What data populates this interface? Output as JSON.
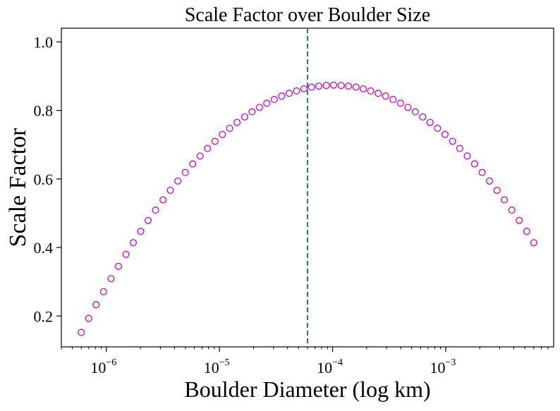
{
  "chart_data": {
    "type": "scatter",
    "title": "Scale Factor over Boulder Size",
    "xlabel": "Boulder Diameter (log km)",
    "ylabel": "Scale Factor",
    "xscale": "log",
    "xlim": [
      4e-07,
      0.009
    ],
    "ylim": [
      0.11,
      1.04
    ],
    "x_ticks": [
      {
        "value": 1e-06,
        "base": "10",
        "exp": "−6"
      },
      {
        "value": 1e-05,
        "base": "10",
        "exp": "−5"
      },
      {
        "value": 0.0001,
        "base": "10",
        "exp": "−4"
      },
      {
        "value": 0.001,
        "base": "10",
        "exp": "−3"
      }
    ],
    "y_ticks": [
      {
        "value": 0.2,
        "label": "0.2"
      },
      {
        "value": 0.4,
        "label": "0.4"
      },
      {
        "value": 0.6,
        "label": "0.6"
      },
      {
        "value": 0.8,
        "label": "0.8"
      },
      {
        "value": 1.0,
        "label": "1.0"
      }
    ],
    "marker": {
      "shape": "open-circle",
      "color": "#cc00cc"
    },
    "vline": {
      "x": 6e-05,
      "color": "#1f77b4",
      "style": "dashed"
    },
    "grid": false,
    "series": [
      {
        "x": [
          6e-07,
          6.98e-07,
          8.12e-07,
          9.44e-07,
          1.1e-06,
          1.28e-06,
          1.49e-06,
          1.73e-06,
          2.01e-06,
          2.34e-06,
          2.72e-06,
          3.17e-06,
          3.68e-06,
          4.28e-06,
          4.98e-06,
          5.8e-06,
          6.74e-06,
          7.84e-06,
          9.12e-06,
          1.06e-05,
          1.23e-05,
          1.43e-05,
          1.67e-05,
          1.94e-05,
          2.26e-05,
          2.62e-05,
          3.05e-05,
          3.55e-05,
          4.13e-05,
          4.8e-05,
          5.59e-05,
          6.5e-05,
          7.55e-05,
          8.79e-05,
          0.000102,
          0.000119,
          0.000138,
          0.000161,
          0.000187,
          0.000217,
          0.000253,
          0.000294,
          0.000342,
          0.000398,
          0.000463,
          0.000538,
          0.000626,
          0.000728,
          0.000847,
          0.000985,
          0.00115,
          0.00133,
          0.00155,
          0.0018,
          0.0021,
          0.00244,
          0.00284,
          0.0033,
          0.00384,
          0.00447,
          0.0052,
          0.006
        ],
        "y": [
          0.152,
          0.193,
          0.233,
          0.271,
          0.309,
          0.345,
          0.38,
          0.414,
          0.447,
          0.479,
          0.509,
          0.539,
          0.567,
          0.594,
          0.619,
          0.644,
          0.667,
          0.689,
          0.71,
          0.73,
          0.748,
          0.765,
          0.781,
          0.796,
          0.809,
          0.821,
          0.832,
          0.842,
          0.85,
          0.857,
          0.863,
          0.868,
          0.871,
          0.873,
          0.874,
          0.873,
          0.871,
          0.868,
          0.863,
          0.857,
          0.85,
          0.842,
          0.832,
          0.821,
          0.809,
          0.796,
          0.781,
          0.765,
          0.748,
          0.73,
          0.71,
          0.689,
          0.667,
          0.644,
          0.619,
          0.594,
          0.567,
          0.539,
          0.509,
          0.479,
          0.447,
          0.414
        ]
      }
    ]
  }
}
